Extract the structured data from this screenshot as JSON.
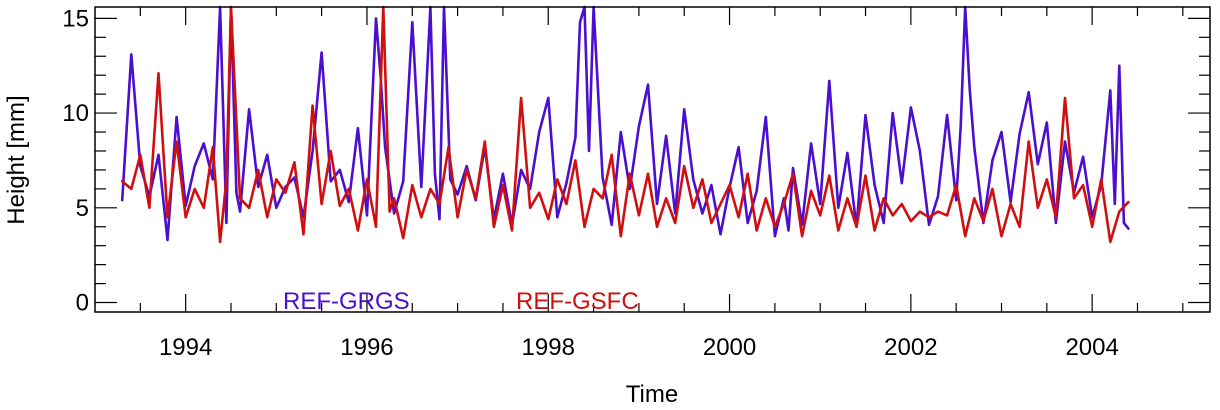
{
  "chart_data": {
    "type": "line",
    "title": "",
    "xlabel": "Time",
    "ylabel": "Height [mm]",
    "xlim": [
      1993.0,
      2005.3
    ],
    "ylim": [
      -0.5,
      15.6
    ],
    "grid": false,
    "legend_placement": "bottom-left, inside plot",
    "x_ticks": [
      {
        "value": 1994,
        "label": "1994"
      },
      {
        "value": 1996,
        "label": "1996"
      },
      {
        "value": 1998,
        "label": "1998"
      },
      {
        "value": 2000,
        "label": "2000"
      },
      {
        "value": 2002,
        "label": "2002"
      },
      {
        "value": 2004,
        "label": "2004"
      }
    ],
    "y_ticks": [
      {
        "value": 0,
        "label": "0"
      },
      {
        "value": 5,
        "label": "5"
      },
      {
        "value": 10,
        "label": "10"
      },
      {
        "value": 15,
        "label": "15"
      }
    ],
    "series": [
      {
        "name": "REF-GRGS",
        "color": "#4B0FD0",
        "x": [
          1993.3,
          1993.4,
          1993.5,
          1993.6,
          1993.7,
          1993.8,
          1993.9,
          1994.0,
          1994.1,
          1994.2,
          1994.3,
          1994.38,
          1994.45,
          1994.5,
          1994.56,
          1994.6,
          1994.7,
          1994.8,
          1994.9,
          1995.0,
          1995.1,
          1995.2,
          1995.3,
          1995.4,
          1995.5,
          1995.6,
          1995.7,
          1995.8,
          1995.9,
          1996.0,
          1996.1,
          1996.15,
          1996.2,
          1996.3,
          1996.4,
          1996.5,
          1996.6,
          1996.7,
          1996.75,
          1996.8,
          1996.85,
          1996.92,
          1997.0,
          1997.1,
          1997.2,
          1997.3,
          1997.4,
          1997.5,
          1997.6,
          1997.7,
          1997.8,
          1997.9,
          1998.0,
          1998.1,
          1998.2,
          1998.3,
          1998.35,
          1998.4,
          1998.45,
          1998.5,
          1998.6,
          1998.7,
          1998.8,
          1998.9,
          1999.0,
          1999.1,
          1999.2,
          1999.3,
          1999.4,
          1999.5,
          1999.6,
          1999.7,
          1999.8,
          1999.9,
          2000.0,
          2000.1,
          2000.2,
          2000.3,
          2000.4,
          2000.5,
          2000.6,
          2000.65,
          2000.7,
          2000.8,
          2000.9,
          2001.0,
          2001.1,
          2001.2,
          2001.3,
          2001.4,
          2001.5,
          2001.6,
          2001.7,
          2001.8,
          2001.9,
          2002.0,
          2002.1,
          2002.2,
          2002.3,
          2002.4,
          2002.5,
          2002.55,
          2002.6,
          2002.65,
          2002.7,
          2002.8,
          2002.9,
          2003.0,
          2003.1,
          2003.2,
          2003.3,
          2003.4,
          2003.5,
          2003.6,
          2003.7,
          2003.8,
          2003.9,
          2004.0,
          2004.1,
          2004.2,
          2004.25,
          2004.3,
          2004.35,
          2004.4
        ],
        "y": [
          5.4,
          13.1,
          7.2,
          5.6,
          7.8,
          3.3,
          9.8,
          5.1,
          7.2,
          8.4,
          6.5,
          15.6,
          4.2,
          15.6,
          5.8,
          4.8,
          10.2,
          6.1,
          7.8,
          5.0,
          6.1,
          6.6,
          4.5,
          8.0,
          13.2,
          6.4,
          7.0,
          5.3,
          9.2,
          4.6,
          15.0,
          12.0,
          8.2,
          4.7,
          6.4,
          14.8,
          6.1,
          15.6,
          6.8,
          4.4,
          15.6,
          6.5,
          5.7,
          7.2,
          5.4,
          8.2,
          4.4,
          6.8,
          4.1,
          7.0,
          6.0,
          9.0,
          10.8,
          4.5,
          6.3,
          8.7,
          14.8,
          15.6,
          8.0,
          15.6,
          6.6,
          4.1,
          9.0,
          6.0,
          9.3,
          11.5,
          5.2,
          8.8,
          4.7,
          10.2,
          6.5,
          4.7,
          6.2,
          3.6,
          6.1,
          8.2,
          4.2,
          5.9,
          9.8,
          3.5,
          5.5,
          3.8,
          7.1,
          4.1,
          8.4,
          5.2,
          11.7,
          5.0,
          7.9,
          4.0,
          9.9,
          6.2,
          4.2,
          10.0,
          6.3,
          10.3,
          8.0,
          4.1,
          5.6,
          9.9,
          5.4,
          9.3,
          15.6,
          11.2,
          8.2,
          4.2,
          7.5,
          9.0,
          5.3,
          8.9,
          11.1,
          7.3,
          9.5,
          4.2,
          8.5,
          5.8,
          7.7,
          4.5,
          6.2,
          11.2,
          5.2,
          12.5,
          4.2,
          3.9
        ]
      },
      {
        "name": "REF-GSFC",
        "color": "#D01010",
        "x": [
          1993.3,
          1993.4,
          1993.5,
          1993.6,
          1993.7,
          1993.8,
          1993.9,
          1994.0,
          1994.1,
          1994.2,
          1994.3,
          1994.38,
          1994.45,
          1994.5,
          1994.6,
          1994.7,
          1994.8,
          1994.9,
          1995.0,
          1995.1,
          1995.2,
          1995.3,
          1995.4,
          1995.5,
          1995.6,
          1995.7,
          1995.8,
          1995.9,
          1996.0,
          1996.1,
          1996.18,
          1996.25,
          1996.3,
          1996.4,
          1996.5,
          1996.6,
          1996.7,
          1996.8,
          1996.9,
          1997.0,
          1997.1,
          1997.2,
          1997.3,
          1997.4,
          1997.5,
          1997.6,
          1997.7,
          1997.8,
          1997.9,
          1998.0,
          1998.1,
          1998.2,
          1998.3,
          1998.4,
          1998.5,
          1998.6,
          1998.7,
          1998.8,
          1998.9,
          1999.0,
          1999.1,
          1999.2,
          1999.3,
          1999.4,
          1999.5,
          1999.6,
          1999.7,
          1999.8,
          1999.9,
          2000.0,
          2000.1,
          2000.2,
          2000.3,
          2000.4,
          2000.5,
          2000.6,
          2000.7,
          2000.8,
          2000.9,
          2001.0,
          2001.1,
          2001.2,
          2001.3,
          2001.4,
          2001.5,
          2001.6,
          2001.7,
          2001.8,
          2001.9,
          2002.0,
          2002.1,
          2002.2,
          2002.3,
          2002.4,
          2002.5,
          2002.6,
          2002.7,
          2002.8,
          2002.9,
          2003.0,
          2003.1,
          2003.2,
          2003.3,
          2003.4,
          2003.5,
          2003.6,
          2003.7,
          2003.8,
          2003.9,
          2004.0,
          2004.1,
          2004.2,
          2004.3,
          2004.4
        ],
        "y": [
          6.4,
          6.0,
          7.8,
          5.0,
          12.1,
          4.5,
          8.5,
          4.5,
          6.0,
          5.0,
          8.2,
          3.2,
          6.5,
          15.6,
          5.5,
          5.0,
          7.0,
          4.5,
          6.5,
          5.8,
          7.4,
          3.6,
          10.4,
          5.2,
          8.0,
          5.1,
          6.0,
          3.8,
          6.5,
          4.0,
          15.6,
          4.8,
          5.5,
          3.4,
          6.2,
          4.5,
          6.0,
          5.2,
          8.2,
          4.5,
          7.0,
          5.5,
          8.5,
          4.0,
          6.2,
          3.8,
          10.8,
          5.0,
          5.8,
          4.4,
          6.5,
          5.2,
          7.5,
          4.0,
          6.0,
          5.5,
          7.8,
          3.5,
          6.8,
          4.6,
          6.8,
          4.0,
          5.5,
          4.2,
          7.2,
          5.0,
          6.5,
          4.2,
          5.2,
          6.2,
          4.5,
          6.8,
          3.8,
          5.5,
          4.0,
          5.2,
          6.8,
          3.5,
          5.9,
          4.6,
          6.7,
          3.8,
          5.5,
          4.0,
          6.7,
          3.8,
          5.5,
          4.6,
          5.2,
          4.3,
          4.8,
          4.5,
          4.8,
          4.6,
          6.2,
          3.5,
          5.5,
          4.3,
          6.0,
          3.5,
          5.2,
          4.0,
          8.5,
          5.0,
          6.5,
          4.5,
          10.8,
          5.5,
          6.2,
          4.0,
          6.5,
          3.2,
          4.8,
          5.3
        ]
      }
    ]
  }
}
